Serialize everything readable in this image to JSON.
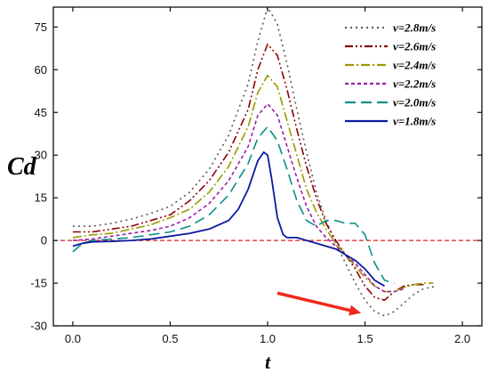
{
  "chart_data": {
    "type": "line",
    "xlabel": "t",
    "ylabel": "Cd",
    "xlim": [
      -0.1,
      2.1
    ],
    "ylim": [
      -30,
      82
    ],
    "xticks": [
      0.0,
      0.5,
      1.0,
      1.5,
      2.0
    ],
    "xtick_labels": [
      "0.0",
      "0.5",
      "1.0",
      "1.5",
      "2.0"
    ],
    "yticks": [
      -30,
      -15,
      0,
      15,
      30,
      45,
      60,
      75
    ],
    "ytick_labels": [
      "-30",
      "-15",
      "0",
      "15",
      "30",
      "45",
      "60",
      "75"
    ],
    "grid": false,
    "legend_position": "top-right",
    "reference_line": {
      "y": 0,
      "color": "#dd2222",
      "style": "dashed"
    },
    "annotation_arrow": {
      "from": [
        1.05,
        -18.5
      ],
      "to": [
        1.48,
        -25.5
      ],
      "color": "#ee2a1a"
    },
    "series": [
      {
        "name": "v=2.8m/s",
        "color": "#5a5a5a",
        "dash": "2,4",
        "x": [
          0.0,
          0.1,
          0.2,
          0.3,
          0.4,
          0.5,
          0.6,
          0.7,
          0.8,
          0.9,
          0.95,
          1.0,
          1.05,
          1.1,
          1.15,
          1.2,
          1.25,
          1.3,
          1.35,
          1.4,
          1.45,
          1.5,
          1.55,
          1.6,
          1.65,
          1.7,
          1.75,
          1.8,
          1.87
        ],
        "y": [
          5,
          5,
          6,
          7.5,
          9.5,
          12,
          17,
          25,
          37,
          55,
          70,
          82,
          76,
          62,
          46,
          31,
          17,
          7,
          -1,
          -8,
          -15,
          -21,
          -25,
          -26.5,
          -25,
          -22,
          -19,
          -17,
          -16
        ]
      },
      {
        "name": "v=2.6m/s",
        "color": "#8b0000",
        "dash": "9,3,2,3,2,3",
        "x": [
          0.0,
          0.1,
          0.2,
          0.3,
          0.4,
          0.5,
          0.6,
          0.7,
          0.8,
          0.9,
          0.95,
          1.0,
          1.05,
          1.1,
          1.15,
          1.2,
          1.25,
          1.3,
          1.35,
          1.4,
          1.45,
          1.5,
          1.55,
          1.6,
          1.65,
          1.7,
          1.75,
          1.8
        ],
        "y": [
          3,
          3,
          4,
          5,
          7,
          9,
          14,
          21,
          31,
          46,
          60,
          69,
          65,
          53,
          39,
          26,
          15,
          6,
          0,
          -5,
          -10,
          -16,
          -20,
          -21,
          -18,
          -16,
          -15.5,
          -15.5
        ]
      },
      {
        "name": "v=2.4m/s",
        "color": "#9a9a00",
        "dash": "10,3,2,3",
        "x": [
          0.0,
          0.1,
          0.2,
          0.3,
          0.4,
          0.5,
          0.6,
          0.7,
          0.8,
          0.9,
          0.95,
          1.0,
          1.05,
          1.1,
          1.15,
          1.2,
          1.25,
          1.3,
          1.35,
          1.4,
          1.45,
          1.5,
          1.55,
          1.6,
          1.65,
          1.7,
          1.75,
          1.8,
          1.85
        ],
        "y": [
          1,
          2,
          2.5,
          4,
          5.5,
          8,
          11,
          17,
          26,
          40,
          52,
          58,
          54,
          42,
          30,
          18,
          10,
          4,
          -1,
          -5,
          -9,
          -13,
          -16,
          -18,
          -18,
          -16.5,
          -15.5,
          -15,
          -15
        ]
      },
      {
        "name": "v=2.2m/s",
        "color": "#9b1fa6",
        "dash": "4,3",
        "x": [
          0.0,
          0.1,
          0.2,
          0.3,
          0.4,
          0.5,
          0.6,
          0.7,
          0.8,
          0.9,
          0.95,
          1.0,
          1.05,
          1.1,
          1.15,
          1.2,
          1.25,
          1.3,
          1.35,
          1.4,
          1.45,
          1.5,
          1.55,
          1.6,
          1.65,
          1.7
        ],
        "y": [
          0,
          0.5,
          1.5,
          2.5,
          3.5,
          5,
          8,
          13,
          21,
          33,
          44,
          48,
          44,
          33,
          22,
          12,
          5,
          1,
          -2,
          -5,
          -8,
          -12,
          -16,
          -18,
          -18,
          -17
        ]
      },
      {
        "name": "v=2.0m/s",
        "color": "#0a8f8a",
        "dash": "12,6",
        "x": [
          0.0,
          0.05,
          0.1,
          0.2,
          0.3,
          0.4,
          0.5,
          0.6,
          0.7,
          0.8,
          0.9,
          0.95,
          1.0,
          1.05,
          1.1,
          1.15,
          1.2,
          1.25,
          1.3,
          1.35,
          1.4,
          1.45,
          1.5,
          1.55,
          1.6,
          1.65
        ],
        "y": [
          -4,
          -1,
          0,
          0.5,
          1,
          2,
          3,
          5,
          9,
          16,
          27,
          36,
          40,
          35,
          25,
          14,
          7,
          5,
          7,
          7,
          6,
          6,
          2,
          -8,
          -14,
          -15
        ]
      },
      {
        "name": "v=1.8m/s",
        "color": "#0a1aa0",
        "dash": "",
        "x": [
          0.0,
          0.05,
          0.1,
          0.2,
          0.3,
          0.4,
          0.5,
          0.6,
          0.7,
          0.8,
          0.85,
          0.9,
          0.95,
          0.98,
          1.0,
          1.02,
          1.05,
          1.08,
          1.1,
          1.15,
          1.2,
          1.25,
          1.3,
          1.35,
          1.4,
          1.45,
          1.5,
          1.55,
          1.6
        ],
        "y": [
          -2,
          -1,
          -0.5,
          -0.3,
          0,
          0.5,
          1.5,
          2.5,
          4,
          7,
          11,
          18,
          28,
          31,
          30,
          22,
          8,
          2,
          1,
          1,
          0,
          -1,
          -2,
          -3,
          -5,
          -7,
          -10,
          -14,
          -16
        ]
      }
    ]
  }
}
